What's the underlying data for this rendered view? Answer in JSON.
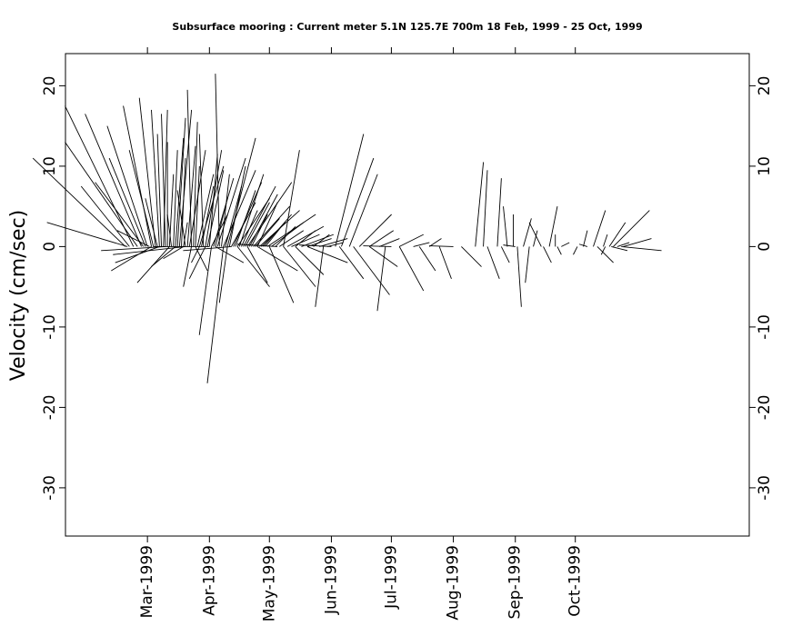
{
  "chart_data": {
    "type": "stick_plot",
    "title": "Subsurface mooring : Current meter  5.1N 125.7E   700m  18 Feb, 1999 - 25 Oct, 1999",
    "ylabel": "Velocity (cm/sec)",
    "xlabel": "",
    "ylim": [
      -36,
      24
    ],
    "xlim": [
      "1999-01-19",
      "1999-12-27"
    ],
    "grid": false,
    "y_ticks": [
      20,
      10,
      0,
      -10,
      -20,
      -30
    ],
    "y_tick_labels": [
      "20",
      "10",
      "0",
      "-10",
      "-20",
      "-30"
    ],
    "x_ticks": [
      "1999-03-01",
      "1999-04-01",
      "1999-05-01",
      "1999-06-01",
      "1999-07-01",
      "1999-08-01",
      "1999-09-01",
      "1999-10-01"
    ],
    "x_tick_labels": [
      "Mar-1999",
      "Apr-1999",
      "May-1999",
      "Jun-1999",
      "Jul-1999",
      "Aug-1999",
      "Sep-1999",
      "Oct-1999"
    ],
    "series": [
      {
        "color": "#000000",
        "sticks_note_units": "each stick: [date, u east cm/s, v north cm/s] drawn from (date, 0)",
        "sticks": [
          [
            "1999-02-18",
            -11.5,
            11.0
          ],
          [
            "1999-02-19",
            -10.0,
            3.0
          ],
          [
            "1999-02-20",
            -6.0,
            7.5
          ],
          [
            "1999-02-22",
            -8.5,
            17.5
          ],
          [
            "1999-02-24",
            -9.0,
            13.0
          ],
          [
            "1999-02-26",
            -7.0,
            16.5
          ],
          [
            "1999-02-27",
            -6.0,
            8.0
          ],
          [
            "1999-02-28",
            -4.5,
            11.0
          ],
          [
            "1999-03-01",
            -5.0,
            15.0
          ],
          [
            "1999-03-02",
            -4.0,
            2.0
          ],
          [
            "1999-03-03",
            -3.5,
            17.5
          ],
          [
            "1999-03-04",
            -3.0,
            12.0
          ],
          [
            "1999-03-05",
            -2.0,
            18.5
          ],
          [
            "1999-03-06",
            -1.5,
            6.0
          ],
          [
            "1999-03-07",
            -1.0,
            17.0
          ],
          [
            "1999-03-08",
            -0.5,
            14.0
          ],
          [
            "1999-03-09",
            0.5,
            17.0
          ],
          [
            "1999-03-10",
            -0.5,
            16.5
          ],
          [
            "1999-03-11",
            0.0,
            13.0
          ],
          [
            "1999-03-12",
            0.5,
            9.0
          ],
          [
            "1999-03-13",
            -0.5,
            4.0
          ],
          [
            "1999-03-14",
            0.5,
            12.0
          ],
          [
            "1999-03-15",
            1.0,
            13.5
          ],
          [
            "1999-03-16",
            1.0,
            16.0
          ],
          [
            "1999-03-17",
            1.5,
            17.0
          ],
          [
            "1999-03-18",
            0.5,
            11.0
          ],
          [
            "1999-03-19",
            0.5,
            3.0
          ],
          [
            "1999-03-20",
            -1.0,
            7.0
          ],
          [
            "1999-03-21",
            1.0,
            12.5
          ],
          [
            "1999-03-22",
            2.0,
            12.0
          ],
          [
            "1999-03-23",
            -0.5,
            19.5
          ],
          [
            "1999-03-24",
            0.5,
            15.5
          ],
          [
            "1999-03-25",
            0.5,
            10.0
          ],
          [
            "1999-03-26",
            2.0,
            9.0
          ],
          [
            "1999-03-27",
            3.0,
            10.0
          ],
          [
            "1999-03-28",
            1.5,
            7.5
          ],
          [
            "1999-03-29",
            -0.5,
            14.0
          ],
          [
            "1999-03-30",
            2.0,
            12.0
          ],
          [
            "1999-03-31",
            2.0,
            9.5
          ],
          [
            "1999-04-01",
            1.0,
            11.5
          ],
          [
            "1999-04-02",
            2.0,
            4.0
          ],
          [
            "1999-04-03",
            2.5,
            8.5
          ],
          [
            "1999-04-04",
            1.5,
            6.0
          ],
          [
            "1999-04-05",
            3.5,
            11.0
          ],
          [
            "1999-04-06",
            -0.5,
            21.5
          ],
          [
            "1999-04-07",
            1.0,
            9.0
          ],
          [
            "1999-04-08",
            4.0,
            9.5
          ],
          [
            "1999-04-09",
            2.0,
            7.5
          ],
          [
            "1999-04-10",
            3.5,
            13.5
          ],
          [
            "1999-04-11",
            2.0,
            10.0
          ],
          [
            "1999-04-12",
            3.0,
            5.5
          ],
          [
            "1999-04-13",
            3.5,
            8.0
          ],
          [
            "1999-04-14",
            2.5,
            7.0
          ],
          [
            "1999-04-15",
            4.0,
            6.0
          ],
          [
            "1999-04-16",
            3.0,
            9.0
          ],
          [
            "1999-04-17",
            2.0,
            4.5
          ],
          [
            "1999-04-18",
            4.0,
            7.5
          ],
          [
            "1999-04-19",
            3.0,
            5.5
          ],
          [
            "1999-04-20",
            5.5,
            8.0
          ],
          [
            "1999-04-21",
            3.5,
            6.5
          ],
          [
            "1999-04-22",
            2.0,
            4.0
          ],
          [
            "1999-04-23",
            4.5,
            5.0
          ],
          [
            "1999-04-24",
            3.0,
            3.5
          ],
          [
            "1999-04-25",
            2.5,
            5.5
          ],
          [
            "1999-04-26",
            5.0,
            4.5
          ],
          [
            "1999-04-27",
            3.0,
            3.0
          ],
          [
            "1999-04-28",
            3.5,
            4.0
          ],
          [
            "1999-04-29",
            2.0,
            2.5
          ],
          [
            "1999-04-30",
            6.0,
            4.0
          ],
          [
            "1999-05-02",
            4.0,
            3.0
          ],
          [
            "1999-05-04",
            2.5,
            2.5
          ],
          [
            "1999-05-06",
            3.0,
            2.0
          ],
          [
            "1999-05-08",
            2.0,
            12.0
          ],
          [
            "1999-05-10",
            4.5,
            2.5
          ],
          [
            "1999-05-12",
            3.5,
            1.5
          ],
          [
            "1999-05-14",
            2.5,
            2.0
          ],
          [
            "1999-05-17",
            4.0,
            1.5
          ],
          [
            "1999-05-20",
            3.0,
            1.0
          ],
          [
            "1999-05-23",
            2.0,
            1.5
          ],
          [
            "1999-05-26",
            3.5,
            1.0
          ],
          [
            "1999-05-30",
            2.0,
            0.5
          ],
          [
            "1999-06-03",
            3.5,
            14.0
          ],
          [
            "1999-06-06",
            4.0,
            11.0
          ],
          [
            "1999-06-10",
            3.5,
            9.0
          ],
          [
            "1999-06-15",
            4.0,
            4.0
          ],
          [
            "1999-06-20",
            3.0,
            2.0
          ],
          [
            "1999-06-25",
            2.5,
            1.0
          ],
          [
            "1999-07-05",
            3.0,
            1.5
          ],
          [
            "1999-07-12",
            2.0,
            0.5
          ],
          [
            "1999-07-20",
            1.5,
            1.0
          ],
          [
            "1999-08-12",
            1.0,
            10.5
          ],
          [
            "1999-08-16",
            0.5,
            9.5
          ],
          [
            "1999-08-23",
            0.5,
            8.5
          ],
          [
            "1999-08-28",
            -0.5,
            5.0
          ],
          [
            "1999-08-31",
            0.0,
            4.0
          ],
          [
            "1999-09-05",
            1.0,
            3.5
          ],
          [
            "1999-09-10",
            0.5,
            2.0
          ],
          [
            "1999-09-14",
            -1.5,
            3.0
          ],
          [
            "1999-09-18",
            1.0,
            5.0
          ],
          [
            "1999-09-21",
            0.0,
            1.5
          ],
          [
            "1999-09-24",
            1.0,
            0.5
          ],
          [
            "1999-10-05",
            0.5,
            2.0
          ],
          [
            "1999-10-10",
            1.5,
            4.5
          ],
          [
            "1999-10-15",
            0.5,
            1.5
          ],
          [
            "1999-10-18",
            2.0,
            3.0
          ],
          [
            "1999-10-20",
            4.5,
            4.5
          ],
          [
            "1999-10-22",
            1.5,
            0.5
          ],
          [
            "1999-10-24",
            5.0,
            -0.5
          ],
          [
            "1999-10-25",
            3.5,
            1.0
          ],
          [
            "1999-03-03",
            -5.0,
            -3.0
          ],
          [
            "1999-03-07",
            -5.5,
            -2.0
          ],
          [
            "1999-03-12",
            -4.0,
            -4.5
          ],
          [
            "1999-03-15",
            -3.0,
            -2.5
          ],
          [
            "1999-03-19",
            -2.5,
            -1.5
          ],
          [
            "1999-03-23",
            -1.0,
            -5.0
          ],
          [
            "1999-03-25",
            1.5,
            -3.0
          ],
          [
            "1999-03-27",
            -1.0,
            -2.0
          ],
          [
            "1999-03-30",
            -2.0,
            -4.0
          ],
          [
            "1999-04-02",
            -1.5,
            -11.0
          ],
          [
            "1999-04-04",
            3.5,
            -2.0
          ],
          [
            "1999-04-08",
            -2.0,
            -17.0
          ],
          [
            "1999-04-10",
            -1.0,
            -7.0
          ],
          [
            "1999-04-15",
            4.0,
            -5.0
          ],
          [
            "1999-04-20",
            2.5,
            -4.5
          ],
          [
            "1999-04-25",
            5.0,
            -3.0
          ],
          [
            "1999-05-01",
            3.0,
            -7.0
          ],
          [
            "1999-05-08",
            4.0,
            -5.0
          ],
          [
            "1999-05-14",
            3.5,
            -3.5
          ],
          [
            "1999-05-20",
            5.0,
            -2.0
          ],
          [
            "1999-05-28",
            -1.0,
            -7.5
          ],
          [
            "1999-06-05",
            3.0,
            -4.0
          ],
          [
            "1999-06-12",
            4.5,
            -6.0
          ],
          [
            "1999-06-20",
            3.5,
            -2.5
          ],
          [
            "1999-06-28",
            -1.0,
            -8.0
          ],
          [
            "1999-07-05",
            3.0,
            -5.5
          ],
          [
            "1999-07-15",
            2.0,
            -3.0
          ],
          [
            "1999-07-25",
            1.5,
            -4.0
          ],
          [
            "1999-08-05",
            2.5,
            -2.5
          ],
          [
            "1999-08-18",
            1.5,
            -4.0
          ],
          [
            "1999-08-25",
            1.0,
            -2.0
          ],
          [
            "1999-09-02",
            0.5,
            -7.5
          ],
          [
            "1999-09-08",
            -0.5,
            -4.5
          ],
          [
            "1999-09-15",
            1.0,
            -2.0
          ],
          [
            "1999-09-22",
            0.5,
            -1.0
          ],
          [
            "1999-10-02",
            -0.5,
            -1.0
          ],
          [
            "1999-10-12",
            2.0,
            -2.0
          ],
          [
            "1999-10-16",
            -0.5,
            -1.0
          ],
          [
            "1999-10-19",
            2.0,
            -0.5
          ],
          [
            "1999-03-10",
            -8.0,
            -0.5
          ],
          [
            "1999-03-20",
            -9.0,
            -1.0
          ],
          [
            "1999-04-01",
            -7.0,
            0.0
          ],
          [
            "1999-04-12",
            -6.0,
            -0.5
          ],
          [
            "1999-05-05",
            -5.0,
            0.3
          ],
          [
            "1999-06-01",
            -4.0,
            0.2
          ],
          [
            "1999-07-01",
            -3.5,
            0.1
          ],
          [
            "1999-08-01",
            -3.0,
            0.1
          ],
          [
            "1999-09-01",
            -1.5,
            0.2
          ],
          [
            "1999-10-07",
            -1.0,
            0.3
          ]
        ]
      }
    ]
  }
}
